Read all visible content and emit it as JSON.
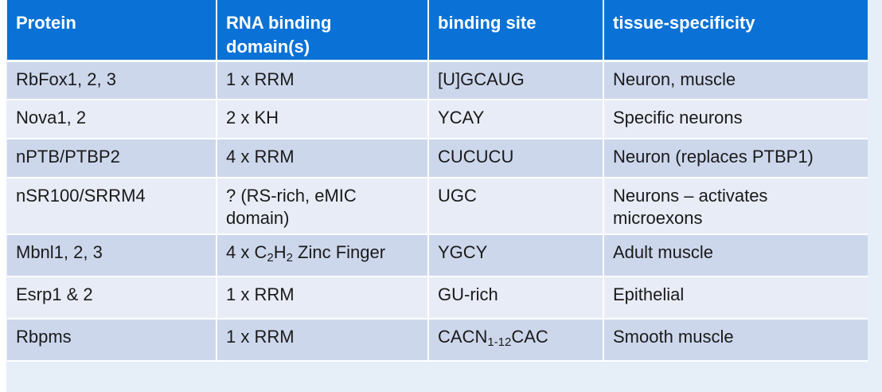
{
  "table": {
    "headers": {
      "protein": "Protein",
      "rna_binding_line1": "RNA binding",
      "rna_binding_line2": "domain(s)",
      "binding_site": "binding site",
      "tissue": "tissue-specificity"
    },
    "rows": [
      {
        "protein": "RbFox1, 2, 3",
        "domain": "1 x RRM",
        "site": "[U]GCAUG",
        "tissue": "Neuron, muscle"
      },
      {
        "protein": "Nova1, 2",
        "domain": "2 x KH",
        "site": "YCAY",
        "tissue": "Specific neurons"
      },
      {
        "protein": "nPTB/PTBP2",
        "domain": "4 x RRM",
        "site": "CUCUCU",
        "tissue": "Neuron (replaces PTBP1)"
      },
      {
        "protein": "nSR100/SRRM4",
        "domain_line1": "? (RS-rich, eMIC",
        "domain_line2": "domain)",
        "site": "UGC",
        "tissue_line1": "Neurons – activates",
        "tissue_line2": "microexons"
      },
      {
        "protein": "Mbnl1, 2, 3",
        "domain_pre": "4 x C",
        "domain_sub1": "2",
        "domain_mid": "H",
        "domain_sub2": "2",
        "domain_post": " Zinc Finger",
        "site": "YGCY",
        "tissue": "Adult muscle"
      },
      {
        "protein": "Esrp1 & 2",
        "domain": "1 x RRM",
        "site": "GU-rich",
        "tissue": "Epithelial"
      },
      {
        "protein": "Rbpms",
        "domain": "1 x RRM",
        "site_pre": "CACN",
        "site_sub": "1-12",
        "site_post": "CAC",
        "tissue": "Smooth muscle"
      }
    ]
  }
}
